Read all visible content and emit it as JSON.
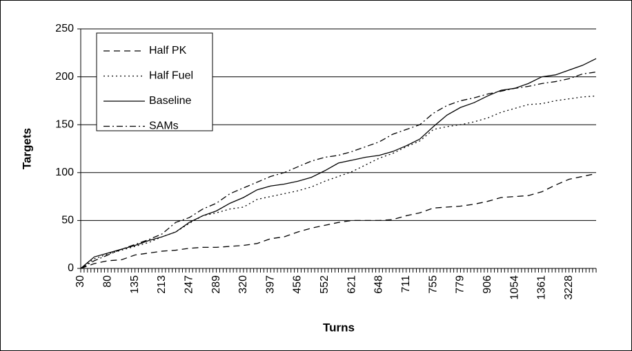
{
  "chart_data": {
    "type": "line",
    "x_label": "Turns",
    "y_label": "Targets",
    "categories": [
      "30",
      null,
      "80",
      null,
      "135",
      null,
      "213",
      null,
      "247",
      null,
      "289",
      null,
      "320",
      null,
      "397",
      null,
      "456",
      null,
      "552",
      null,
      "621",
      null,
      "648",
      null,
      "711",
      null,
      "755",
      null,
      "779",
      null,
      "906",
      null,
      "1054",
      null,
      "1361",
      null,
      "3228",
      null,
      null
    ],
    "series": [
      {
        "name": "Half PK",
        "color": "#000000",
        "style": "dashed",
        "values": [
          0,
          5,
          8,
          9,
          14,
          16,
          18,
          19,
          21,
          22,
          22,
          23,
          24,
          26,
          31,
          33,
          38,
          42,
          45,
          48,
          50,
          50,
          50,
          51,
          55,
          58,
          63,
          64,
          65,
          67,
          70,
          74,
          75,
          76,
          80,
          87,
          93,
          96,
          99
        ]
      },
      {
        "name": "Half Fuel",
        "color": "#000000",
        "style": "dotted",
        "values": [
          0,
          10,
          15,
          19,
          23,
          27,
          33,
          38,
          47,
          55,
          58,
          62,
          64,
          72,
          75,
          78,
          81,
          85,
          91,
          96,
          101,
          108,
          115,
          120,
          127,
          133,
          145,
          148,
          150,
          153,
          157,
          163,
          167,
          171,
          172,
          175,
          177,
          179,
          180
        ]
      },
      {
        "name": "Baseline",
        "color": "#000000",
        "style": "solid",
        "values": [
          0,
          12,
          16,
          20,
          24,
          29,
          33,
          38,
          48,
          55,
          60,
          68,
          74,
          82,
          86,
          88,
          91,
          95,
          102,
          110,
          113,
          116,
          118,
          122,
          128,
          135,
          148,
          160,
          168,
          173,
          180,
          186,
          188,
          193,
          200,
          202,
          207,
          212,
          219
        ]
      },
      {
        "name": "SAMs",
        "color": "#000000",
        "style": "dashdot",
        "values": [
          0,
          8,
          14,
          20,
          25,
          30,
          36,
          48,
          53,
          62,
          68,
          78,
          84,
          90,
          96,
          100,
          106,
          112,
          116,
          118,
          122,
          127,
          132,
          140,
          145,
          150,
          162,
          170,
          175,
          178,
          182,
          185,
          188,
          190,
          193,
          195,
          198,
          203,
          205
        ]
      }
    ],
    "ylim": [
      0,
      250
    ],
    "yticks": [
      0,
      50,
      100,
      150,
      200,
      250
    ],
    "grid": true,
    "legend": "top-left"
  }
}
